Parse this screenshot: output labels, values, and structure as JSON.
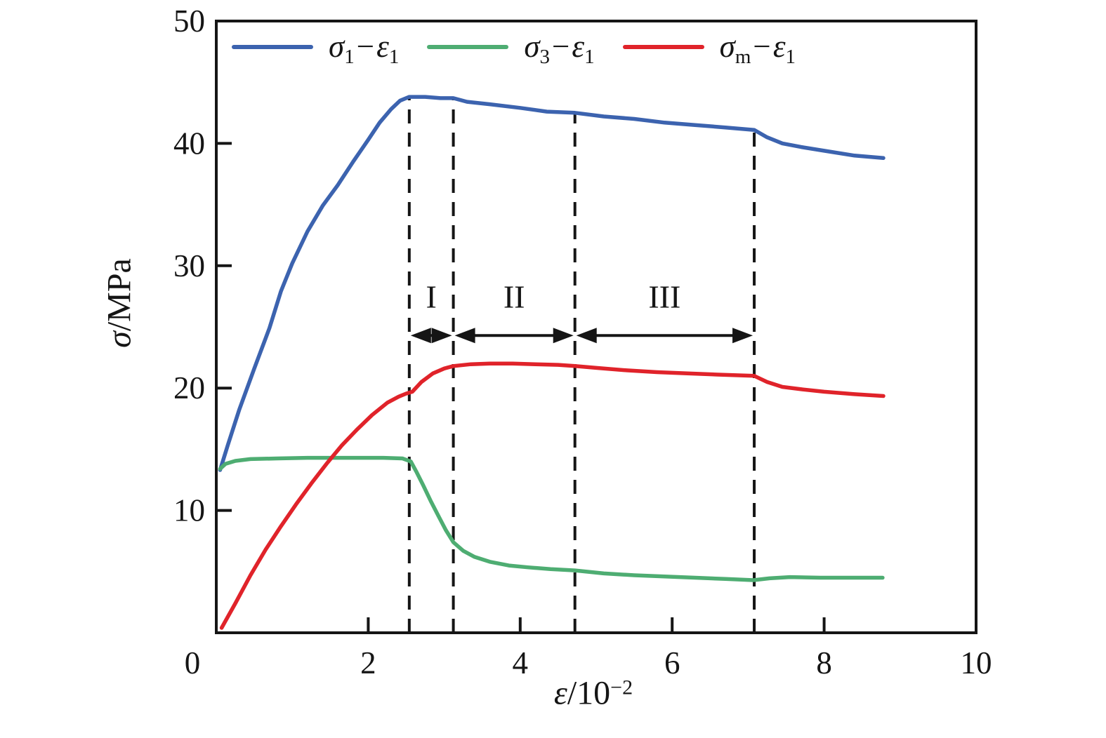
{
  "figure": {
    "background": "#ffffff"
  },
  "axes": {
    "y_symbol": "σ",
    "y_unit": "/MPa",
    "x_symbol": "ε",
    "x_base": "/10",
    "x_exp": "−2"
  },
  "legend": {
    "items": [
      {
        "sym": "σ",
        "sub": "1",
        "minus": "−",
        "sym2": "ε",
        "sub2": "1"
      },
      {
        "sym": "σ",
        "sub": "3",
        "minus": "−",
        "sym2": "ε",
        "sub2": "1"
      },
      {
        "sym": "σ",
        "sub": "m",
        "minus": "−",
        "sym2": "ε",
        "sub2": "1"
      }
    ]
  },
  "chart_data": {
    "type": "line",
    "title": "",
    "xlabel": "ε/10⁻²",
    "ylabel": "σ/MPa",
    "xlim": [
      0,
      10
    ],
    "ylim": [
      0,
      50
    ],
    "x_ticks": [
      0,
      2,
      4,
      6,
      8,
      10
    ],
    "y_ticks": [
      10,
      20,
      30,
      40,
      50
    ],
    "grid": false,
    "legend_position": "top",
    "axis_color": "#151515",
    "series": [
      {
        "name": "σ1−ε1",
        "color": "#3C63AF",
        "points": [
          [
            0.05,
            13.3
          ],
          [
            0.15,
            15.3
          ],
          [
            0.3,
            18.2
          ],
          [
            0.5,
            21.6
          ],
          [
            0.7,
            24.9
          ],
          [
            0.85,
            27.9
          ],
          [
            1.0,
            30.2
          ],
          [
            1.2,
            32.8
          ],
          [
            1.4,
            34.9
          ],
          [
            1.6,
            36.6
          ],
          [
            1.8,
            38.5
          ],
          [
            2.0,
            40.3
          ],
          [
            2.15,
            41.7
          ],
          [
            2.3,
            42.8
          ],
          [
            2.42,
            43.5
          ],
          [
            2.54,
            43.8
          ],
          [
            2.75,
            43.8
          ],
          [
            2.95,
            43.7
          ],
          [
            3.12,
            43.7
          ],
          [
            3.3,
            43.4
          ],
          [
            3.6,
            43.2
          ],
          [
            4.0,
            42.9
          ],
          [
            4.35,
            42.6
          ],
          [
            4.72,
            42.5
          ],
          [
            5.1,
            42.2
          ],
          [
            5.5,
            42.0
          ],
          [
            5.9,
            41.7
          ],
          [
            6.3,
            41.5
          ],
          [
            6.7,
            41.3
          ],
          [
            7.08,
            41.1
          ],
          [
            7.25,
            40.5
          ],
          [
            7.45,
            40.0
          ],
          [
            7.7,
            39.7
          ],
          [
            8.0,
            39.4
          ],
          [
            8.4,
            39.0
          ],
          [
            8.78,
            38.8
          ]
        ]
      },
      {
        "name": "σ3−ε1",
        "color": "#4EAD72",
        "points": [
          [
            0.05,
            13.4
          ],
          [
            0.12,
            13.8
          ],
          [
            0.25,
            14.05
          ],
          [
            0.45,
            14.2
          ],
          [
            0.8,
            14.25
          ],
          [
            1.2,
            14.3
          ],
          [
            1.7,
            14.3
          ],
          [
            2.2,
            14.3
          ],
          [
            2.45,
            14.25
          ],
          [
            2.56,
            14.0
          ],
          [
            2.63,
            13.2
          ],
          [
            2.72,
            12.1
          ],
          [
            2.82,
            10.8
          ],
          [
            2.92,
            9.6
          ],
          [
            3.02,
            8.4
          ],
          [
            3.12,
            7.4
          ],
          [
            3.25,
            6.7
          ],
          [
            3.4,
            6.2
          ],
          [
            3.6,
            5.8
          ],
          [
            3.85,
            5.5
          ],
          [
            4.1,
            5.35
          ],
          [
            4.4,
            5.2
          ],
          [
            4.72,
            5.1
          ],
          [
            5.1,
            4.85
          ],
          [
            5.5,
            4.7
          ],
          [
            5.9,
            4.6
          ],
          [
            6.3,
            4.5
          ],
          [
            6.7,
            4.4
          ],
          [
            7.07,
            4.3
          ],
          [
            7.28,
            4.45
          ],
          [
            7.55,
            4.55
          ],
          [
            7.95,
            4.5
          ],
          [
            8.35,
            4.5
          ],
          [
            8.77,
            4.5
          ]
        ]
      },
      {
        "name": "σm−ε1",
        "color": "#E0232A",
        "points": [
          [
            0.07,
            0.4
          ],
          [
            0.25,
            2.4
          ],
          [
            0.45,
            4.7
          ],
          [
            0.65,
            6.8
          ],
          [
            0.85,
            8.7
          ],
          [
            1.05,
            10.5
          ],
          [
            1.25,
            12.2
          ],
          [
            1.45,
            13.8
          ],
          [
            1.65,
            15.3
          ],
          [
            1.85,
            16.6
          ],
          [
            2.05,
            17.8
          ],
          [
            2.25,
            18.8
          ],
          [
            2.4,
            19.3
          ],
          [
            2.5,
            19.55
          ],
          [
            2.58,
            19.7
          ],
          [
            2.7,
            20.5
          ],
          [
            2.85,
            21.2
          ],
          [
            3.0,
            21.6
          ],
          [
            3.12,
            21.8
          ],
          [
            3.35,
            21.95
          ],
          [
            3.6,
            22.0
          ],
          [
            3.9,
            22.0
          ],
          [
            4.2,
            21.95
          ],
          [
            4.5,
            21.9
          ],
          [
            4.72,
            21.8
          ],
          [
            5.0,
            21.65
          ],
          [
            5.4,
            21.45
          ],
          [
            5.8,
            21.3
          ],
          [
            6.2,
            21.2
          ],
          [
            6.6,
            21.1
          ],
          [
            7.08,
            21.0
          ],
          [
            7.25,
            20.5
          ],
          [
            7.45,
            20.1
          ],
          [
            7.7,
            19.9
          ],
          [
            8.0,
            19.7
          ],
          [
            8.4,
            19.5
          ],
          [
            8.78,
            19.35
          ]
        ]
      }
    ],
    "phase_boundaries_x": [
      2.54,
      3.12,
      4.72,
      7.08
    ],
    "regions": [
      {
        "label": "I",
        "from": 2.54,
        "to": 3.12
      },
      {
        "label": "II",
        "from": 3.12,
        "to": 4.72
      },
      {
        "label": "III",
        "from": 4.72,
        "to": 7.08
      }
    ],
    "region_arrow_y": 24.3,
    "region_label_y": 27.5
  }
}
